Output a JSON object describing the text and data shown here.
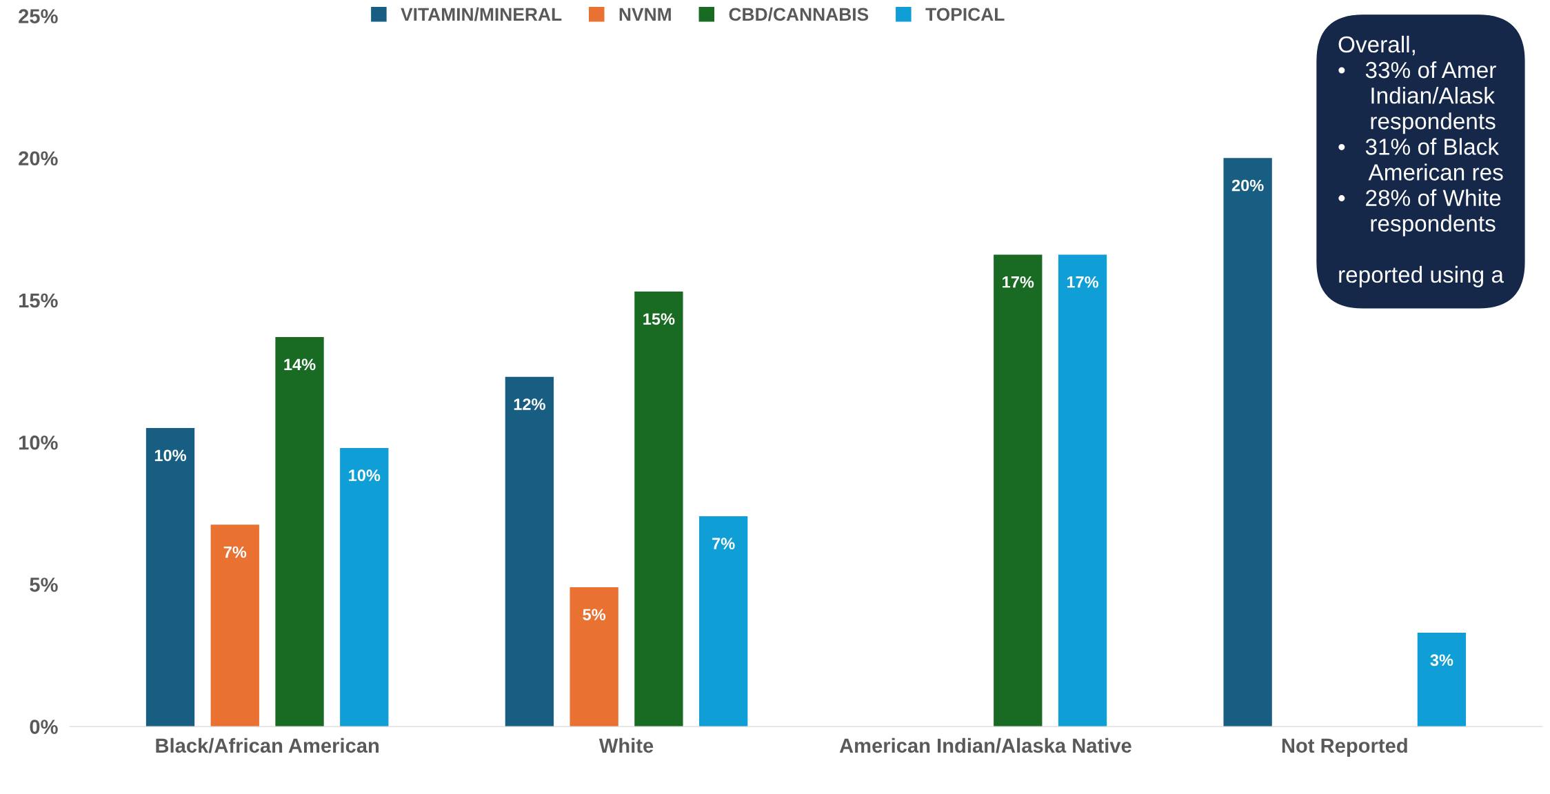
{
  "chart_data": {
    "type": "bar",
    "categories": [
      "Black/African American",
      "White",
      "American Indian/Alaska Native",
      "Not Reported"
    ],
    "series": [
      {
        "name": "VITAMIN/MINERAL",
        "color": "#175e82",
        "values": [
          10.5,
          12.3,
          null,
          20.0
        ],
        "value_labels": [
          "10%",
          "12%",
          null,
          "20%"
        ]
      },
      {
        "name": "NVNM",
        "color": "#e97132",
        "values": [
          7.1,
          4.9,
          null,
          null
        ],
        "value_labels": [
          "7%",
          "5%",
          null,
          null
        ]
      },
      {
        "name": "CBD/CANNABIS",
        "color": "#196b24",
        "values": [
          13.7,
          15.3,
          16.6,
          null
        ],
        "value_labels": [
          "14%",
          "15%",
          "17%",
          null
        ]
      },
      {
        "name": "TOPICAL",
        "color": "#0f9ed5",
        "values": [
          9.8,
          7.4,
          16.6,
          3.3
        ],
        "value_labels": [
          "10%",
          "7%",
          "17%",
          "3%"
        ]
      }
    ],
    "ylim": [
      0,
      25
    ],
    "yticks": [
      {
        "value": 0,
        "label": "0%"
      },
      {
        "value": 5,
        "label": "5%"
      },
      {
        "value": 10,
        "label": "10%"
      },
      {
        "value": 15,
        "label": "15%"
      },
      {
        "value": 20,
        "label": "20%"
      },
      {
        "value": 25,
        "label": "25%"
      }
    ],
    "grid": false,
    "legend": "top",
    "annotations": [
      "Overall,\n•   33% of Amer\n     Indian/Alask\n     respondents\n•   31% of Black\n     American res\n•   28% of White\n     respondents\n\nreported using a"
    ]
  }
}
